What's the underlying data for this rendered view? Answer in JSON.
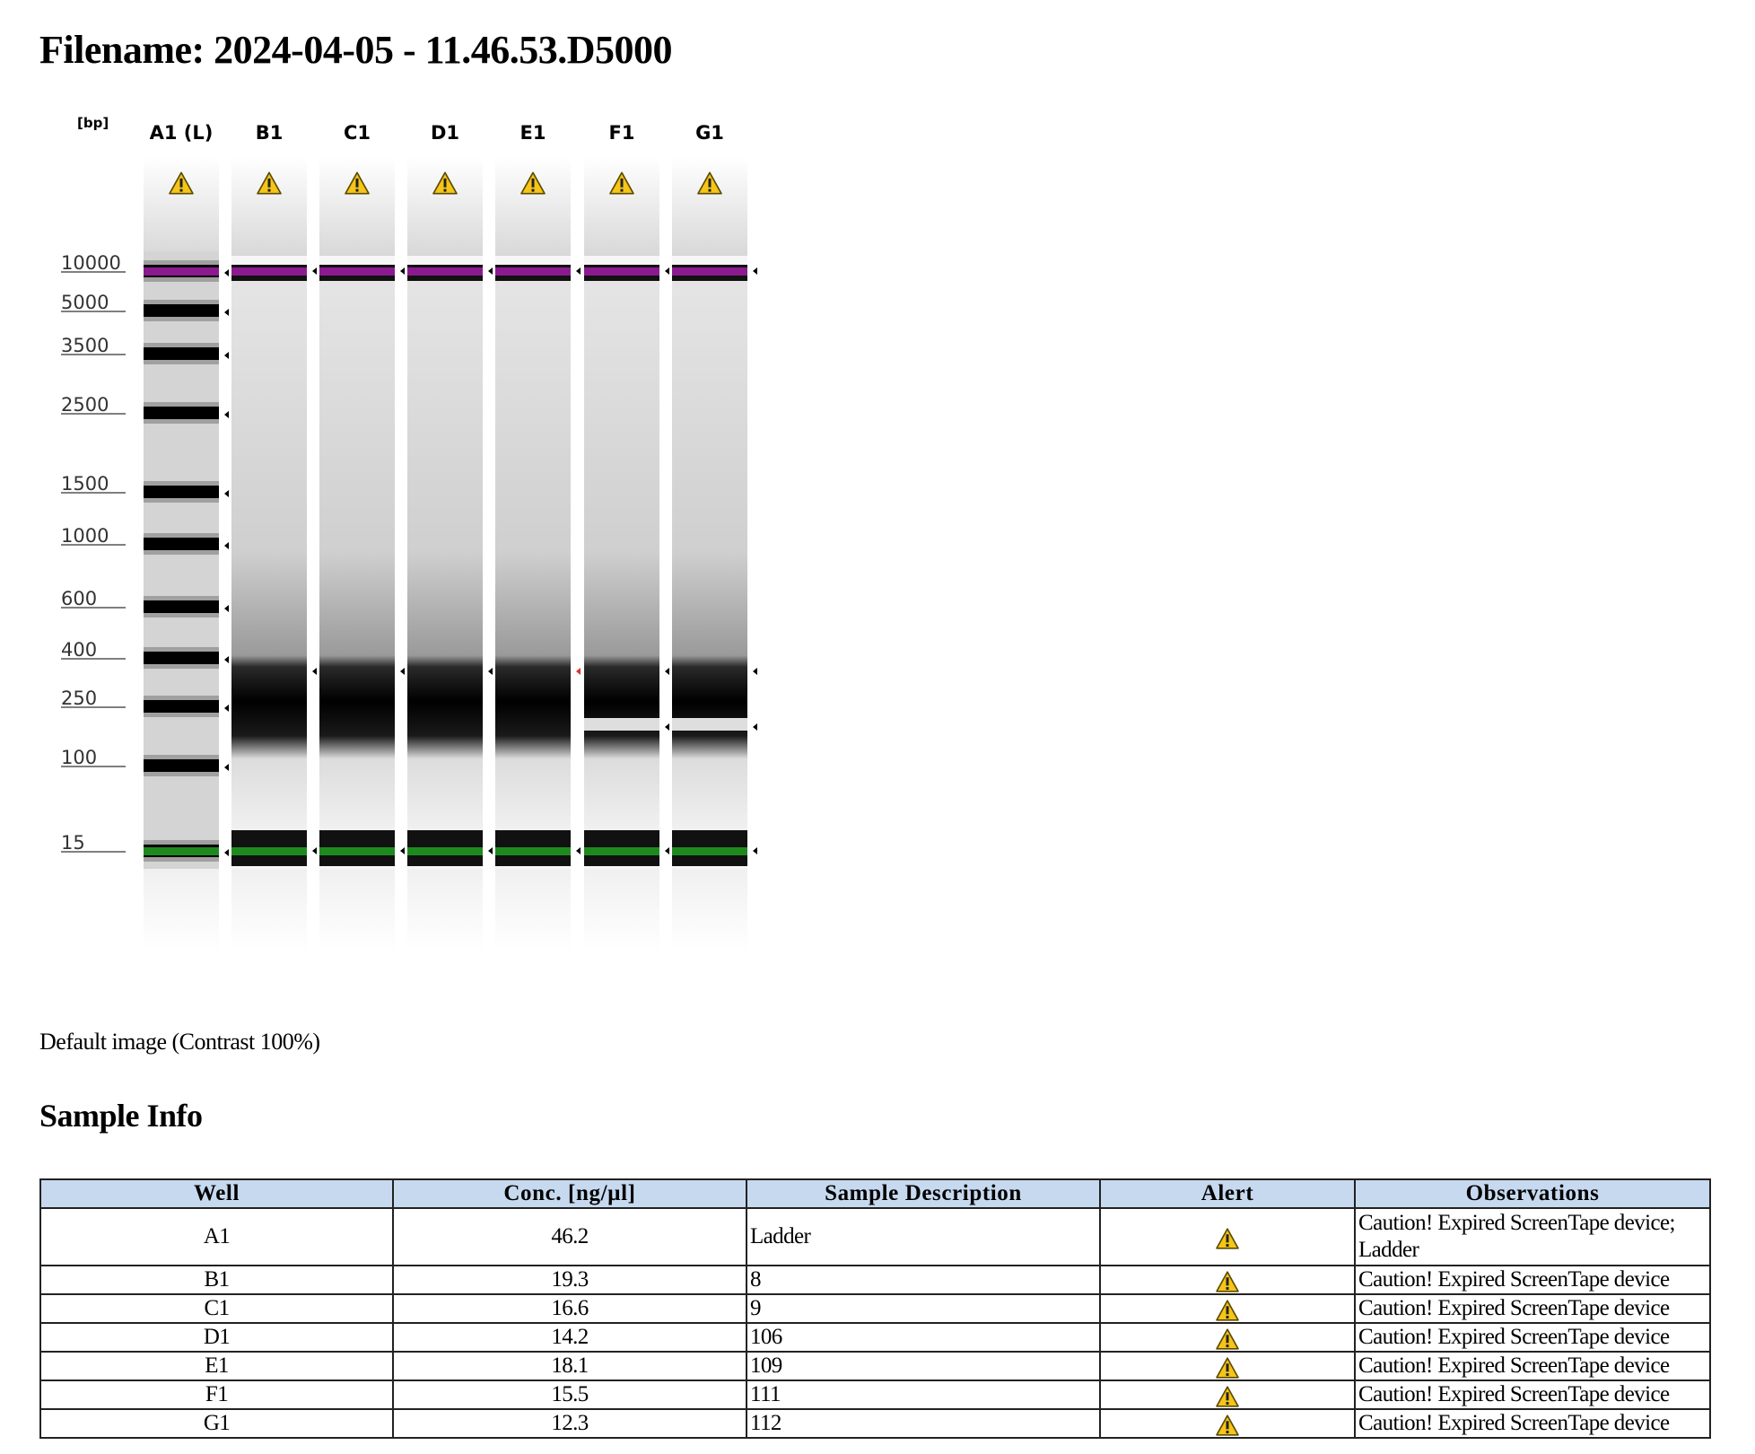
{
  "title": "Filename: 2024-04-05 - 11.46.53.D5000",
  "gel": {
    "unit_label": "[bp]",
    "lanes": [
      "A1 (L)",
      "B1",
      "C1",
      "D1",
      "E1",
      "F1",
      "G1"
    ],
    "size_markers": [
      "10000",
      "5000",
      "3500",
      "2500",
      "1500",
      "1000",
      "600",
      "400",
      "250",
      "100",
      "15"
    ],
    "upper_marker_color": "#8b1a8f",
    "lower_marker_color": "#1e8a1e",
    "alert_color": "#f5c518"
  },
  "caption": "Default image (Contrast 100%)",
  "sample_info": {
    "heading": "Sample Info",
    "columns": [
      "Well",
      "Conc. [ng/µl]",
      "Sample Description",
      "Alert",
      "Observations"
    ],
    "rows": [
      {
        "well": "A1",
        "conc": "46.2",
        "description": "Ladder",
        "observations": "Caution! Expired ScreenTape device; Ladder"
      },
      {
        "well": "B1",
        "conc": "19.3",
        "description": "8",
        "observations": "Caution! Expired ScreenTape device"
      },
      {
        "well": "C1",
        "conc": "16.6",
        "description": "9",
        "observations": "Caution! Expired ScreenTape device"
      },
      {
        "well": "D1",
        "conc": "14.2",
        "description": "106",
        "observations": "Caution! Expired ScreenTape device"
      },
      {
        "well": "E1",
        "conc": "18.1",
        "description": "109",
        "observations": "Caution! Expired ScreenTape device"
      },
      {
        "well": "F1",
        "conc": "15.5",
        "description": "111",
        "observations": "Caution! Expired ScreenTape device"
      },
      {
        "well": "G1",
        "conc": "12.3",
        "description": "112",
        "observations": "Caution! Expired ScreenTape device"
      }
    ],
    "header_bg": "#c6d9ef"
  }
}
